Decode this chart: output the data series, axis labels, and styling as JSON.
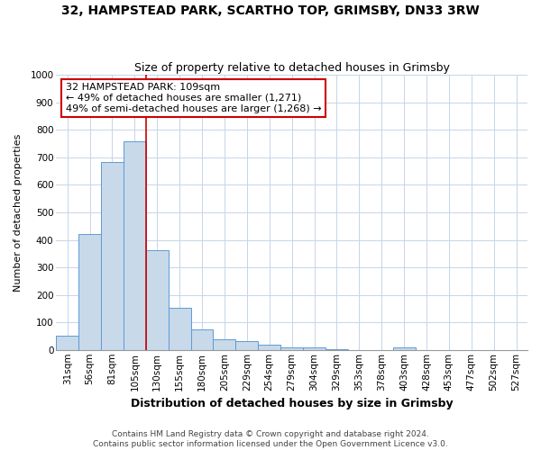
{
  "title": "32, HAMPSTEAD PARK, SCARTHO TOP, GRIMSBY, DN33 3RW",
  "subtitle": "Size of property relative to detached houses in Grimsby",
  "xlabel": "Distribution of detached houses by size in Grimsby",
  "ylabel": "Number of detached properties",
  "bar_labels": [
    "31sqm",
    "56sqm",
    "81sqm",
    "105sqm",
    "130sqm",
    "155sqm",
    "180sqm",
    "205sqm",
    "229sqm",
    "254sqm",
    "279sqm",
    "304sqm",
    "329sqm",
    "353sqm",
    "378sqm",
    "403sqm",
    "428sqm",
    "453sqm",
    "477sqm",
    "502sqm",
    "527sqm"
  ],
  "bar_values": [
    52,
    422,
    683,
    757,
    362,
    153,
    75,
    40,
    32,
    18,
    10,
    8,
    1,
    0,
    0,
    8,
    0,
    0,
    0,
    0,
    0
  ],
  "bar_color": "#c8d9ea",
  "bar_edge_color": "#5b9bd5",
  "vline_color": "#cc0000",
  "vline_x": 3.5,
  "ylim": [
    0,
    1000
  ],
  "yticks": [
    0,
    100,
    200,
    300,
    400,
    500,
    600,
    700,
    800,
    900,
    1000
  ],
  "annotation_title": "32 HAMPSTEAD PARK: 109sqm",
  "annotation_line1": "← 49% of detached houses are smaller (1,271)",
  "annotation_line2": "49% of semi-detached houses are larger (1,268) →",
  "annotation_box_facecolor": "#ffffff",
  "annotation_box_edgecolor": "#cc0000",
  "footer_line1": "Contains HM Land Registry data © Crown copyright and database right 2024.",
  "footer_line2": "Contains public sector information licensed under the Open Government Licence v3.0.",
  "grid_color": "#c5d5e8",
  "background_color": "#ffffff",
  "title_fontsize": 10,
  "subtitle_fontsize": 9,
  "xlabel_fontsize": 9,
  "ylabel_fontsize": 8,
  "tick_fontsize": 7.5,
  "annotation_fontsize": 8,
  "footer_fontsize": 6.5
}
